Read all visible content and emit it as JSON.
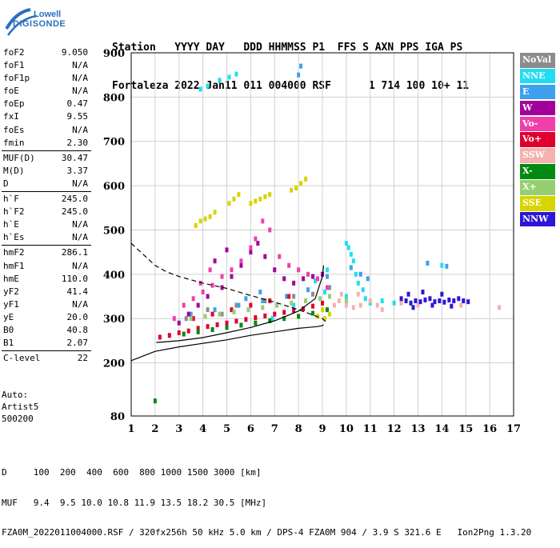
{
  "brand": {
    "line1": "Lowell",
    "line2": "DIGISONDE",
    "color": "#2a6fbf"
  },
  "header": {
    "row1": "Station   YYYY DAY   DDD HHMMSS P1  FFS S AXN PPS IGA PS",
    "row2": "Fortaleza 2022 Jan11 011 004000 RSF      1 714 100 10+ 11"
  },
  "params": {
    "group1": [
      {
        "label": "foF2",
        "value": "9.050"
      },
      {
        "label": "foF1",
        "value": "N/A"
      },
      {
        "label": "foF1p",
        "value": "N/A"
      },
      {
        "label": "foE",
        "value": "N/A"
      },
      {
        "label": "foEp",
        "value": "0.47"
      },
      {
        "label": "fxI",
        "value": "9.55"
      },
      {
        "label": "foEs",
        "value": "N/A"
      },
      {
        "label": "fmin",
        "value": "2.30"
      }
    ],
    "group2": [
      {
        "label": "MUF(D)",
        "value": "30.47"
      },
      {
        "label": "M(D)",
        "value": "3.37"
      },
      {
        "label": "D",
        "value": "N/A"
      }
    ],
    "group3": [
      {
        "label": "h`F",
        "value": "245.0"
      },
      {
        "label": "h`F2",
        "value": "245.0"
      },
      {
        "label": "h`E",
        "value": "N/A"
      },
      {
        "label": "h`Es",
        "value": "N/A"
      }
    ],
    "group4": [
      {
        "label": "hmF2",
        "value": "286.1"
      },
      {
        "label": "hmF1",
        "value": "N/A"
      },
      {
        "label": "hmE",
        "value": "110.0"
      },
      {
        "label": "yF2",
        "value": "41.4"
      },
      {
        "label": "yF1",
        "value": "N/A"
      },
      {
        "label": "yE",
        "value": "20.0"
      },
      {
        "label": "B0",
        "value": "40.8"
      },
      {
        "label": "B1",
        "value": "2.07"
      }
    ],
    "group5": [
      {
        "label": "C-level",
        "value": "22"
      }
    ]
  },
  "auto": {
    "line1": "Auto:",
    "line2": "Artist5",
    "line3": "500200"
  },
  "legend": [
    {
      "label": "NoVal",
      "color": "#8c8c8c"
    },
    {
      "label": "NNE",
      "color": "#22ddf2"
    },
    {
      "label": "E",
      "color": "#3fa0f0"
    },
    {
      "label": "W",
      "color": "#a3009c"
    },
    {
      "label": "Vo-",
      "color": "#ee3faa"
    },
    {
      "label": "Vo+",
      "color": "#e0002e"
    },
    {
      "label": "SSW",
      "color": "#f3b2ae"
    },
    {
      "label": "X-",
      "color": "#008a10"
    },
    {
      "label": "X+",
      "color": "#95cf70"
    },
    {
      "label": "SSE",
      "color": "#d8d400"
    },
    {
      "label": "NNW",
      "color": "#2d16d6"
    }
  ],
  "footer": {
    "line1": "D     100  200  400  600  800 1000 1500 3000 [km]",
    "line2": "MUF   9.4  9.5 10.0 10.8 11.9 13.5 18.2 30.5 [MHz]",
    "line3": "FZA0M_2022011004000.RSF / 320fx256h 50 kHz 5.0 km / DPS-4 FZA0M 904 / 3.9 S 321.6 E   Ion2Png 1.3.20"
  },
  "chart_data": {
    "type": "scatter",
    "x_ticks": [
      1,
      2,
      3,
      4,
      5,
      6,
      7,
      8,
      9,
      10,
      11,
      12,
      13,
      14,
      15,
      16,
      17
    ],
    "y_ticks": [
      80,
      200,
      300,
      400,
      500,
      600,
      700,
      800,
      900
    ],
    "xlim": [
      1,
      17
    ],
    "ylim": [
      80,
      900
    ],
    "grid": true,
    "series": [
      {
        "name": "NoVal",
        "color": "#8c8c8c",
        "points": [
          [
            3.3,
            300
          ],
          [
            4.2,
            320
          ],
          [
            5.4,
            330
          ],
          [
            6.6,
            340
          ],
          [
            7.8,
            350
          ],
          [
            8.6,
            355
          ],
          [
            9.3,
            370
          ],
          [
            4.8,
            310
          ]
        ]
      },
      {
        "name": "NNE",
        "color": "#22ddf2",
        "points": [
          [
            3.9,
            818
          ],
          [
            4.2,
            825
          ],
          [
            4.7,
            838
          ],
          [
            5.1,
            845
          ],
          [
            5.4,
            852
          ],
          [
            10.0,
            470
          ],
          [
            10.1,
            460
          ],
          [
            10.2,
            445
          ],
          [
            10.3,
            430
          ],
          [
            10.4,
            400
          ],
          [
            10.5,
            380
          ],
          [
            10.7,
            365
          ],
          [
            6.9,
            300
          ],
          [
            8.7,
            385
          ],
          [
            9.0,
            400
          ],
          [
            9.2,
            410
          ],
          [
            10.0,
            350
          ],
          [
            10.8,
            345
          ],
          [
            11.0,
            335
          ],
          [
            11.5,
            340
          ],
          [
            12.0,
            335
          ],
          [
            14.0,
            420
          ],
          [
            9.1,
            360
          ],
          [
            7.8,
            330
          ]
        ]
      },
      {
        "name": "E",
        "color": "#3fa0f0",
        "points": [
          [
            3.5,
            310
          ],
          [
            4.5,
            320
          ],
          [
            5.5,
            330
          ],
          [
            6.5,
            340
          ],
          [
            7.5,
            350
          ],
          [
            8.4,
            365
          ],
          [
            9.2,
            395
          ],
          [
            10.2,
            415
          ],
          [
            10.6,
            400
          ],
          [
            10.9,
            390
          ],
          [
            13.4,
            425
          ],
          [
            14.2,
            418
          ],
          [
            8.0,
            850
          ],
          [
            8.1,
            870
          ],
          [
            6.4,
            360
          ],
          [
            5.8,
            345
          ]
        ]
      },
      {
        "name": "W",
        "color": "#a3009c",
        "points": [
          [
            3.0,
            290
          ],
          [
            3.4,
            310
          ],
          [
            3.8,
            330
          ],
          [
            4.2,
            350
          ],
          [
            4.8,
            370
          ],
          [
            5.2,
            395
          ],
          [
            5.6,
            420
          ],
          [
            6.0,
            450
          ],
          [
            6.3,
            470
          ],
          [
            6.6,
            440
          ],
          [
            7.0,
            410
          ],
          [
            7.4,
            390
          ],
          [
            7.8,
            380
          ],
          [
            8.2,
            390
          ],
          [
            8.6,
            395
          ],
          [
            9.0,
            400
          ],
          [
            4.5,
            430
          ],
          [
            5.0,
            455
          ]
        ]
      },
      {
        "name": "Vo-",
        "color": "#ee3faa",
        "points": [
          [
            2.8,
            300
          ],
          [
            3.2,
            330
          ],
          [
            3.6,
            345
          ],
          [
            4.0,
            360
          ],
          [
            4.4,
            375
          ],
          [
            4.8,
            395
          ],
          [
            5.2,
            410
          ],
          [
            5.6,
            430
          ],
          [
            6.0,
            460
          ],
          [
            6.2,
            480
          ],
          [
            6.5,
            520
          ],
          [
            6.8,
            500
          ],
          [
            7.2,
            440
          ],
          [
            7.6,
            420
          ],
          [
            8.0,
            410
          ],
          [
            8.4,
            400
          ],
          [
            8.8,
            390
          ],
          [
            9.2,
            370
          ],
          [
            3.9,
            380
          ],
          [
            4.3,
            410
          ]
        ]
      },
      {
        "name": "Vo+",
        "color": "#e0002e",
        "points": [
          [
            2.2,
            258
          ],
          [
            2.6,
            262
          ],
          [
            3.0,
            268
          ],
          [
            3.4,
            272
          ],
          [
            3.8,
            278
          ],
          [
            4.2,
            282
          ],
          [
            4.6,
            286
          ],
          [
            5.0,
            290
          ],
          [
            5.4,
            294
          ],
          [
            5.8,
            298
          ],
          [
            6.2,
            302
          ],
          [
            6.6,
            306
          ],
          [
            7.0,
            310
          ],
          [
            7.4,
            314
          ],
          [
            7.8,
            318
          ],
          [
            8.2,
            322
          ],
          [
            8.6,
            328
          ],
          [
            9.0,
            335
          ],
          [
            3.6,
            300
          ],
          [
            4.4,
            310
          ],
          [
            5.2,
            320
          ],
          [
            6.0,
            330
          ],
          [
            6.8,
            340
          ],
          [
            7.6,
            350
          ]
        ]
      },
      {
        "name": "SSW",
        "color": "#f3b2ae",
        "points": [
          [
            9.5,
            330
          ],
          [
            9.7,
            340
          ],
          [
            10.0,
            330
          ],
          [
            10.3,
            325
          ],
          [
            10.6,
            330
          ],
          [
            11.0,
            340
          ],
          [
            11.3,
            330
          ],
          [
            11.5,
            320
          ],
          [
            12.3,
            335
          ],
          [
            13.0,
            330
          ],
          [
            14.8,
            330
          ],
          [
            16.4,
            325
          ],
          [
            9.8,
            355
          ],
          [
            10.5,
            355
          ]
        ]
      },
      {
        "name": "X-",
        "color": "#008a10",
        "points": [
          [
            3.2,
            265
          ],
          [
            3.8,
            270
          ],
          [
            4.4,
            275
          ],
          [
            5.0,
            280
          ],
          [
            5.6,
            285
          ],
          [
            6.2,
            290
          ],
          [
            6.8,
            295
          ],
          [
            7.4,
            300
          ],
          [
            8.0,
            305
          ],
          [
            8.6,
            312
          ],
          [
            9.2,
            320
          ],
          [
            2.0,
            114
          ]
        ]
      },
      {
        "name": "X+",
        "color": "#95cf70",
        "points": [
          [
            3.5,
            300
          ],
          [
            4.1,
            305
          ],
          [
            4.7,
            310
          ],
          [
            5.3,
            315
          ],
          [
            5.9,
            320
          ],
          [
            6.5,
            325
          ],
          [
            7.1,
            330
          ],
          [
            7.7,
            335
          ],
          [
            8.3,
            340
          ],
          [
            8.9,
            345
          ],
          [
            9.3,
            350
          ],
          [
            10.0,
            340
          ]
        ]
      },
      {
        "name": "SSE",
        "color": "#d8d400",
        "points": [
          [
            3.7,
            510
          ],
          [
            3.9,
            520
          ],
          [
            4.1,
            525
          ],
          [
            4.3,
            530
          ],
          [
            4.5,
            540
          ],
          [
            5.1,
            560
          ],
          [
            5.3,
            570
          ],
          [
            5.5,
            580
          ],
          [
            6.0,
            560
          ],
          [
            6.2,
            565
          ],
          [
            6.4,
            570
          ],
          [
            6.6,
            575
          ],
          [
            6.8,
            580
          ],
          [
            7.7,
            590
          ],
          [
            7.9,
            595
          ],
          [
            8.1,
            605
          ],
          [
            8.3,
            615
          ],
          [
            9.1,
            300
          ],
          [
            9.3,
            310
          ],
          [
            9.0,
            320
          ],
          [
            8.8,
            305
          ]
        ]
      },
      {
        "name": "NNW",
        "color": "#2d16d6",
        "points": [
          [
            12.3,
            345
          ],
          [
            12.5,
            340
          ],
          [
            12.7,
            335
          ],
          [
            12.9,
            340
          ],
          [
            13.1,
            338
          ],
          [
            13.3,
            342
          ],
          [
            13.5,
            345
          ],
          [
            13.7,
            338
          ],
          [
            13.9,
            340
          ],
          [
            14.1,
            337
          ],
          [
            14.3,
            342
          ],
          [
            14.5,
            340
          ],
          [
            14.7,
            345
          ],
          [
            14.9,
            340
          ],
          [
            15.1,
            338
          ],
          [
            12.6,
            355
          ],
          [
            13.2,
            360
          ],
          [
            14.0,
            355
          ],
          [
            12.8,
            325
          ],
          [
            13.6,
            330
          ],
          [
            14.4,
            328
          ]
        ]
      }
    ],
    "curves": [
      {
        "name": "solid",
        "style": "solid",
        "color": "#000000",
        "points": [
          [
            1.0,
            205
          ],
          [
            2.0,
            226
          ],
          [
            3.0,
            236
          ],
          [
            4.0,
            244
          ],
          [
            5.0,
            252
          ],
          [
            6.0,
            262
          ],
          [
            7.0,
            270
          ],
          [
            8.0,
            278
          ],
          [
            8.8,
            282
          ],
          [
            9.0,
            284
          ],
          [
            9.05,
            286
          ]
        ]
      },
      {
        "name": "lower-bracket",
        "style": "solid",
        "color": "#000000",
        "points": [
          [
            2.05,
            246
          ],
          [
            3.0,
            250
          ],
          [
            4.0,
            257
          ],
          [
            5.0,
            268
          ],
          [
            6.0,
            280
          ],
          [
            7.0,
            295
          ],
          [
            8.0,
            317
          ],
          [
            8.7,
            345
          ],
          [
            9.0,
            395
          ],
          [
            9.05,
            420
          ]
        ]
      },
      {
        "name": "dashed",
        "style": "dashed",
        "color": "#000000",
        "points": [
          [
            1.0,
            470
          ],
          [
            1.5,
            445
          ],
          [
            2.0,
            420
          ],
          [
            2.5,
            405
          ],
          [
            3.0,
            395
          ],
          [
            4.0,
            380
          ],
          [
            5.0,
            368
          ],
          [
            6.0,
            352
          ],
          [
            7.0,
            337
          ],
          [
            8.0,
            320
          ],
          [
            9.0,
            300
          ],
          [
            9.2,
            290
          ]
        ]
      }
    ]
  }
}
